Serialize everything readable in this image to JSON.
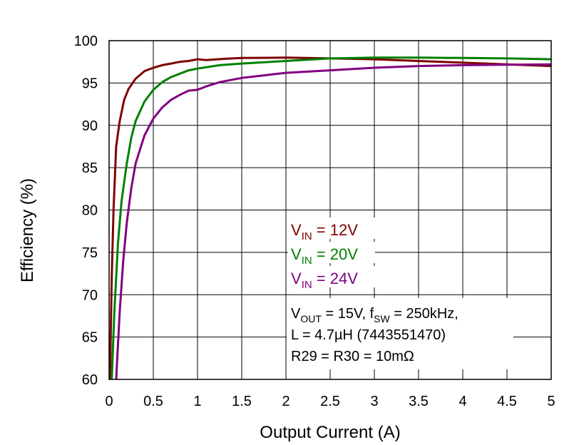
{
  "chart_data": {
    "type": "line",
    "title": "",
    "xlabel": "Output Current (A)",
    "ylabel": "Efficiency (%)",
    "xlim": [
      0,
      5
    ],
    "ylim": [
      60,
      100
    ],
    "x_ticks": [
      "0",
      "0.5",
      "1",
      "1.5",
      "2",
      "2.5",
      "3",
      "3.5",
      "4",
      "4.5",
      "5"
    ],
    "y_ticks": [
      "60",
      "65",
      "70",
      "75",
      "80",
      "85",
      "90",
      "95",
      "100"
    ],
    "grid": true,
    "legend_position": "center-right",
    "series": [
      {
        "name_main": "V",
        "name_sub": "IN",
        "name_rest": " = 12V",
        "color": "#800000",
        "points": [
          [
            0.01,
            60
          ],
          [
            0.03,
            72
          ],
          [
            0.05,
            80
          ],
          [
            0.08,
            87.5
          ],
          [
            0.12,
            90.5
          ],
          [
            0.17,
            93
          ],
          [
            0.22,
            94.3
          ],
          [
            0.3,
            95.5
          ],
          [
            0.4,
            96.4
          ],
          [
            0.5,
            96.8
          ],
          [
            0.6,
            97.1
          ],
          [
            0.7,
            97.3
          ],
          [
            0.8,
            97.5
          ],
          [
            0.9,
            97.6
          ],
          [
            1.0,
            97.8
          ],
          [
            1.1,
            97.7
          ],
          [
            1.3,
            97.85
          ],
          [
            1.5,
            97.95
          ],
          [
            2.0,
            98.0
          ],
          [
            2.5,
            97.9
          ],
          [
            3.0,
            97.8
          ],
          [
            3.5,
            97.6
          ],
          [
            4.0,
            97.4
          ],
          [
            4.5,
            97.2
          ],
          [
            5.0,
            97.0
          ]
        ]
      },
      {
        "name_main": "V",
        "name_sub": "IN",
        "name_rest": " = 20V",
        "color": "#008000",
        "points": [
          [
            0.03,
            60
          ],
          [
            0.06,
            68
          ],
          [
            0.1,
            76
          ],
          [
            0.14,
            81
          ],
          [
            0.2,
            85.5
          ],
          [
            0.25,
            88.5
          ],
          [
            0.3,
            90.5
          ],
          [
            0.4,
            92.8
          ],
          [
            0.5,
            94.2
          ],
          [
            0.6,
            95.1
          ],
          [
            0.7,
            95.7
          ],
          [
            0.8,
            96.1
          ],
          [
            0.9,
            96.5
          ],
          [
            1.0,
            96.7
          ],
          [
            1.25,
            97.1
          ],
          [
            1.5,
            97.3
          ],
          [
            2.0,
            97.6
          ],
          [
            2.5,
            97.9
          ],
          [
            3.0,
            98.0
          ],
          [
            3.5,
            98.0
          ],
          [
            4.0,
            97.95
          ],
          [
            4.5,
            97.9
          ],
          [
            5.0,
            97.8
          ]
        ]
      },
      {
        "name_main": "V",
        "name_sub": "IN",
        "name_rest": " = 24V",
        "color": "#800080",
        "points": [
          [
            0.08,
            60
          ],
          [
            0.12,
            68
          ],
          [
            0.16,
            74
          ],
          [
            0.2,
            78.5
          ],
          [
            0.25,
            82.5
          ],
          [
            0.3,
            85.5
          ],
          [
            0.4,
            88.8
          ],
          [
            0.5,
            90.8
          ],
          [
            0.6,
            92.1
          ],
          [
            0.7,
            93
          ],
          [
            0.8,
            93.6
          ],
          [
            0.9,
            94.1
          ],
          [
            1.0,
            94.2
          ],
          [
            1.1,
            94.6
          ],
          [
            1.25,
            95.1
          ],
          [
            1.5,
            95.6
          ],
          [
            1.75,
            95.9
          ],
          [
            2.0,
            96.2
          ],
          [
            2.5,
            96.5
          ],
          [
            3.0,
            96.8
          ],
          [
            3.5,
            97.0
          ],
          [
            4.0,
            97.1
          ],
          [
            4.5,
            97.15
          ],
          [
            5.0,
            97.2
          ]
        ]
      }
    ],
    "annotation_lines": [
      [
        {
          "t": "V"
        },
        {
          "t": "OUT",
          "sub": true
        },
        {
          "t": " = 15V, f"
        },
        {
          "t": "SW",
          "sub": true
        },
        {
          "t": " = 250kHz,"
        }
      ],
      [
        {
          "t": "L = 4.7µH (7443551470)"
        }
      ],
      [
        {
          "t": "R29 = R30 = 10mΩ"
        }
      ]
    ]
  }
}
